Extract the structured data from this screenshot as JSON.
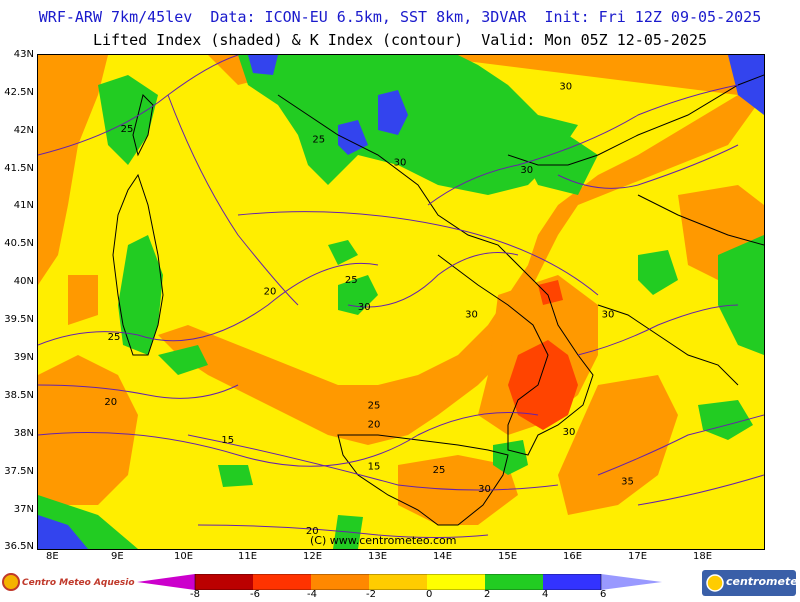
{
  "header": {
    "line1": "WRF-ARW 7km/45lev  Data: ICON-EU 6.5km, SST 8km, 3DVAR  Init: Fri 12Z 09-05-2025",
    "line2": "Lifted Index (shaded) & K Index (contour)  Valid: Mon 05Z 12-05-2025"
  },
  "axes": {
    "lat_labels": [
      "43N",
      "42.5N",
      "42N",
      "41.5N",
      "41N",
      "40.5N",
      "40N",
      "39.5N",
      "39N",
      "38.5N",
      "38N",
      "37.5N",
      "37N",
      "36.5N"
    ],
    "lon_labels": [
      "8E",
      "9E",
      "10E",
      "11E",
      "12E",
      "13E",
      "14E",
      "15E",
      "16E",
      "17E",
      "18E"
    ]
  },
  "contour_labels": [
    {
      "text": "25",
      "lon": 9.15,
      "lat": 42.04
    },
    {
      "text": "25",
      "lon": 12.1,
      "lat": 41.9
    },
    {
      "text": "30",
      "lon": 13.35,
      "lat": 41.6
    },
    {
      "text": "30",
      "lon": 15.9,
      "lat": 42.6
    },
    {
      "text": "30",
      "lon": 15.3,
      "lat": 41.5
    },
    {
      "text": "20",
      "lon": 11.35,
      "lat": 39.9
    },
    {
      "text": "25",
      "lon": 12.6,
      "lat": 40.05
    },
    {
      "text": "30",
      "lon": 12.8,
      "lat": 39.7
    },
    {
      "text": "30",
      "lon": 14.45,
      "lat": 39.6
    },
    {
      "text": "25",
      "lon": 8.95,
      "lat": 39.3
    },
    {
      "text": "20",
      "lon": 8.9,
      "lat": 38.45
    },
    {
      "text": "30",
      "lon": 16.55,
      "lat": 39.6
    },
    {
      "text": "25",
      "lon": 12.95,
      "lat": 38.4
    },
    {
      "text": "20",
      "lon": 12.95,
      "lat": 38.15
    },
    {
      "text": "15",
      "lon": 10.7,
      "lat": 37.95
    },
    {
      "text": "15",
      "lon": 12.95,
      "lat": 37.6
    },
    {
      "text": "25",
      "lon": 13.95,
      "lat": 37.55
    },
    {
      "text": "30",
      "lon": 15.95,
      "lat": 38.05
    },
    {
      "text": "30",
      "lon": 14.65,
      "lat": 37.3
    },
    {
      "text": "35",
      "lon": 16.85,
      "lat": 37.4
    },
    {
      "text": "20",
      "lon": 12.0,
      "lat": 36.75
    }
  ],
  "watermark": "(C) www.centrometeo.com",
  "colorbar": {
    "colors": [
      "#cc00cc",
      "#bb0000",
      "#ff3300",
      "#ff8800",
      "#ffcc00",
      "#ffff00",
      "#22cc22",
      "#3333ff",
      "#9999ff"
    ],
    "labels": [
      "-8",
      "-6",
      "-4",
      "-2",
      "0",
      "2",
      "4",
      "6"
    ]
  },
  "logos": {
    "left": "Centro Meteo Aquesio",
    "right": "centrometeo"
  },
  "palette": {
    "yellow": "#ffee00",
    "orange": "#ff9900",
    "red": "#ff4400",
    "green": "#22cc22",
    "blue": "#3344ee",
    "light_blue": "#7788ff",
    "contour": "#6622aa",
    "coast": "#000000",
    "border": "#999999"
  }
}
